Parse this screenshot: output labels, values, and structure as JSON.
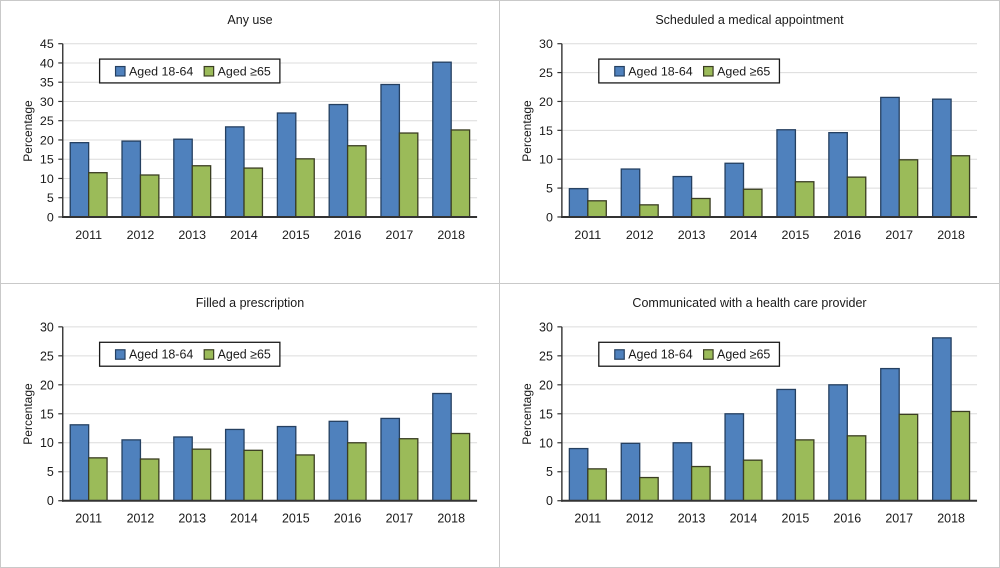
{
  "figure": {
    "background": "#ffffff",
    "frame_color": "#c9c9c9",
    "colors": {
      "series1_fill": "#4F81BD",
      "series1_border": "#254061",
      "series2_fill": "#9BBB59",
      "series2_border": "#3a3d22",
      "gridline": "#dcdcdc",
      "axis": "#333333",
      "text": "#1a1a1a",
      "legend_border": "#1a1a1a",
      "legend_fill": "#ffffff"
    }
  },
  "legend": {
    "series1_label": "Aged 18-64",
    "series2_label": "Aged ≥65"
  },
  "chart_data": [
    {
      "type": "bar",
      "title": "Any use",
      "ylabel": "Percentage",
      "categories": [
        "2011",
        "2012",
        "2013",
        "2014",
        "2015",
        "2016",
        "2017",
        "2018"
      ],
      "series": [
        {
          "name": "Aged 18-64",
          "values": [
            19.3,
            19.7,
            20.2,
            23.4,
            27.0,
            29.2,
            34.4,
            40.2
          ]
        },
        {
          "name": "Aged ≥65",
          "values": [
            11.5,
            10.9,
            13.3,
            12.7,
            15.1,
            18.5,
            21.8,
            22.6
          ]
        }
      ],
      "ylim": [
        0,
        45
      ],
      "ytick_step": 5,
      "grid": true,
      "legend_position": "top-left-inside"
    },
    {
      "type": "bar",
      "title": "Scheduled a medical appointment",
      "ylabel": "Percentage",
      "categories": [
        "2011",
        "2012",
        "2013",
        "2014",
        "2015",
        "2016",
        "2017",
        "2018"
      ],
      "series": [
        {
          "name": "Aged 18-64",
          "values": [
            4.9,
            8.3,
            7.0,
            9.3,
            15.1,
            14.6,
            20.7,
            20.4
          ]
        },
        {
          "name": "Aged ≥65",
          "values": [
            2.8,
            2.1,
            3.2,
            4.8,
            6.1,
            6.9,
            9.9,
            10.6
          ]
        }
      ],
      "ylim": [
        0,
        30
      ],
      "ytick_step": 5,
      "grid": true,
      "legend_position": "top-left-inside"
    },
    {
      "type": "bar",
      "title": "Filled a prescription",
      "ylabel": "Percentage",
      "categories": [
        "2011",
        "2012",
        "2013",
        "2014",
        "2015",
        "2016",
        "2017",
        "2018"
      ],
      "series": [
        {
          "name": "Aged 18-64",
          "values": [
            13.1,
            10.5,
            11.0,
            12.3,
            12.8,
            13.7,
            14.2,
            18.5
          ]
        },
        {
          "name": "Aged ≥65",
          "values": [
            7.4,
            7.2,
            8.9,
            8.7,
            7.9,
            10.0,
            10.7,
            11.6
          ]
        }
      ],
      "ylim": [
        0,
        30
      ],
      "ytick_step": 5,
      "grid": true,
      "legend_position": "top-left-inside"
    },
    {
      "type": "bar",
      "title": "Communicated with a health care provider",
      "ylabel": "Percentage",
      "categories": [
        "2011",
        "2012",
        "2013",
        "2014",
        "2015",
        "2016",
        "2017",
        "2018"
      ],
      "series": [
        {
          "name": "Aged 18-64",
          "values": [
            9.0,
            9.9,
            10.0,
            15.0,
            19.2,
            20.0,
            22.8,
            28.1
          ]
        },
        {
          "name": "Aged ≥65",
          "values": [
            5.5,
            4.0,
            5.9,
            7.0,
            10.5,
            11.2,
            14.9,
            15.4
          ]
        }
      ],
      "ylim": [
        0,
        30
      ],
      "ytick_step": 5,
      "grid": true,
      "legend_position": "top-left-inside"
    }
  ]
}
